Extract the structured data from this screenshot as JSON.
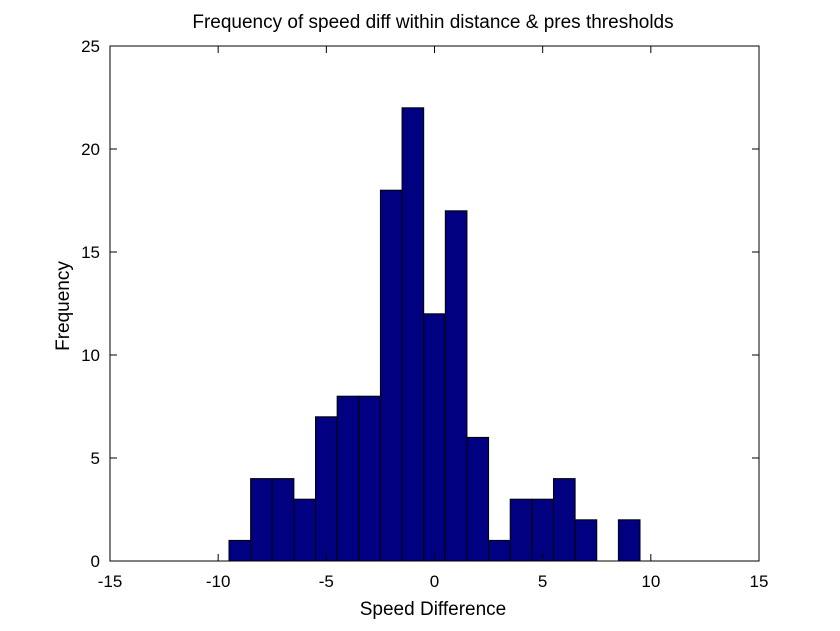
{
  "chart_data": {
    "type": "bar",
    "title": "Frequency of speed diff within distance & pres thresholds",
    "xlabel": "Speed Difference",
    "ylabel": "Frequency",
    "xlim": [
      -15,
      15
    ],
    "ylim": [
      0,
      25
    ],
    "xticks": [
      "-15",
      "-10",
      "-5",
      "0",
      "5",
      "10",
      "15"
    ],
    "yticks": [
      "0",
      "5",
      "10",
      "15",
      "20",
      "25"
    ],
    "grid": false,
    "legend": "none",
    "bar_color": "#000080",
    "edge_color": "#000000",
    "bin_width": 1,
    "bins": [
      {
        "x": -9,
        "value": 1
      },
      {
        "x": -8,
        "value": 4
      },
      {
        "x": -7,
        "value": 4
      },
      {
        "x": -6,
        "value": 3
      },
      {
        "x": -5,
        "value": 7
      },
      {
        "x": -4,
        "value": 8
      },
      {
        "x": -3,
        "value": 8
      },
      {
        "x": -2,
        "value": 18
      },
      {
        "x": -1,
        "value": 22
      },
      {
        "x": 0,
        "value": 12
      },
      {
        "x": 1,
        "value": 17
      },
      {
        "x": 2,
        "value": 6
      },
      {
        "x": 3,
        "value": 1
      },
      {
        "x": 4,
        "value": 3
      },
      {
        "x": 5,
        "value": 3
      },
      {
        "x": 6,
        "value": 4
      },
      {
        "x": 7,
        "value": 2
      },
      {
        "x": 8,
        "value": 0
      },
      {
        "x": 9,
        "value": 2
      }
    ]
  }
}
